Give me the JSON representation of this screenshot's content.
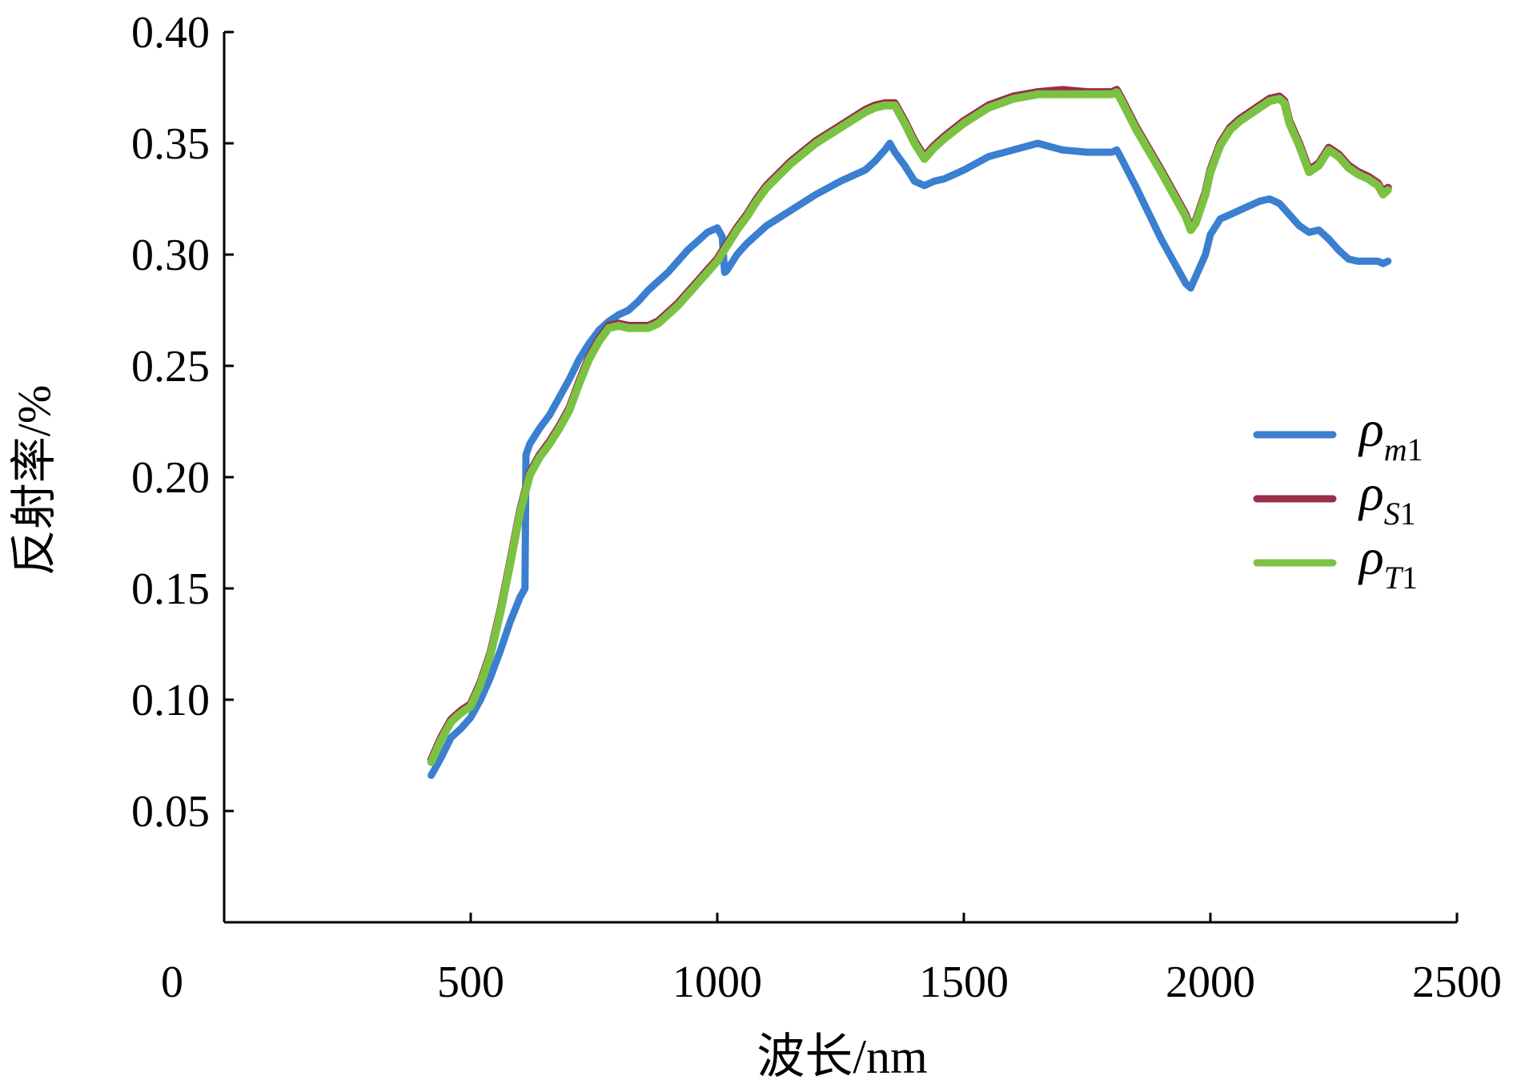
{
  "chart_data": {
    "type": "line",
    "title": "",
    "xlabel": "波长/nm",
    "ylabel": "反射率/%",
    "xlim": [
      0,
      2500
    ],
    "ylim": [
      0,
      0.4
    ],
    "x_ticks": [
      0,
      500,
      1000,
      1500,
      2000,
      2500
    ],
    "x_tick_labels": [
      "0",
      "500",
      "1000",
      "1500",
      "2000",
      "2500"
    ],
    "y_ticks": [
      0.05,
      0.1,
      0.15,
      0.2,
      0.25,
      0.3,
      0.35,
      0.4
    ],
    "y_tick_labels": [
      "0.05",
      "0.10",
      "0.15",
      "0.20",
      "0.25",
      "0.30",
      "0.35",
      "0.40"
    ],
    "grid": false,
    "legend_position": "right",
    "series": [
      {
        "name": "ρm1",
        "legend_base": "ρ",
        "legend_sub": "m1",
        "color": "#3a7fd0",
        "x": [
          420,
          440,
          460,
          480,
          500,
          520,
          540,
          560,
          580,
          600,
          610,
          612,
          620,
          640,
          660,
          680,
          700,
          720,
          740,
          760,
          780,
          800,
          820,
          840,
          860,
          880,
          900,
          920,
          940,
          960,
          980,
          1000,
          1010,
          1015,
          1020,
          1040,
          1060,
          1080,
          1100,
          1150,
          1200,
          1250,
          1300,
          1320,
          1340,
          1350,
          1360,
          1380,
          1400,
          1420,
          1440,
          1460,
          1500,
          1550,
          1600,
          1650,
          1700,
          1750,
          1800,
          1810,
          1820,
          1850,
          1900,
          1950,
          1960,
          1970,
          1990,
          2000,
          2020,
          2040,
          2060,
          2080,
          2100,
          2120,
          2140,
          2160,
          2180,
          2200,
          2220,
          2240,
          2260,
          2280,
          2300,
          2320,
          2340,
          2350,
          2360
        ],
        "values": [
          0.066,
          0.074,
          0.083,
          0.087,
          0.092,
          0.1,
          0.11,
          0.122,
          0.135,
          0.146,
          0.15,
          0.21,
          0.215,
          0.222,
          0.228,
          0.236,
          0.244,
          0.253,
          0.26,
          0.266,
          0.27,
          0.273,
          0.275,
          0.279,
          0.284,
          0.288,
          0.292,
          0.297,
          0.302,
          0.306,
          0.31,
          0.312,
          0.308,
          0.292,
          0.293,
          0.3,
          0.305,
          0.309,
          0.313,
          0.32,
          0.327,
          0.333,
          0.338,
          0.342,
          0.347,
          0.35,
          0.346,
          0.34,
          0.333,
          0.331,
          0.333,
          0.334,
          0.338,
          0.344,
          0.347,
          0.35,
          0.347,
          0.346,
          0.346,
          0.347,
          0.343,
          0.33,
          0.307,
          0.287,
          0.285,
          0.29,
          0.3,
          0.309,
          0.316,
          0.318,
          0.32,
          0.322,
          0.324,
          0.325,
          0.323,
          0.318,
          0.313,
          0.31,
          0.311,
          0.307,
          0.302,
          0.298,
          0.297,
          0.297,
          0.297,
          0.296,
          0.297
        ]
      },
      {
        "name": "ρS1",
        "legend_base": "ρ",
        "legend_sub": "S1",
        "color": "#9b2c4a",
        "x": [
          420,
          440,
          460,
          480,
          500,
          520,
          540,
          560,
          580,
          600,
          620,
          640,
          660,
          680,
          700,
          720,
          740,
          760,
          780,
          800,
          820,
          840,
          860,
          880,
          900,
          920,
          940,
          960,
          980,
          1000,
          1020,
          1040,
          1060,
          1080,
          1100,
          1150,
          1200,
          1250,
          1300,
          1320,
          1340,
          1360,
          1380,
          1400,
          1420,
          1440,
          1460,
          1500,
          1550,
          1600,
          1650,
          1700,
          1750,
          1800,
          1810,
          1820,
          1850,
          1900,
          1950,
          1960,
          1970,
          1990,
          2000,
          2020,
          2040,
          2060,
          2080,
          2100,
          2120,
          2140,
          2150,
          2160,
          2180,
          2200,
          2220,
          2240,
          2260,
          2280,
          2300,
          2320,
          2340,
          2350,
          2360
        ],
        "values": [
          0.073,
          0.083,
          0.091,
          0.095,
          0.098,
          0.108,
          0.121,
          0.14,
          0.162,
          0.185,
          0.202,
          0.21,
          0.216,
          0.223,
          0.231,
          0.243,
          0.254,
          0.262,
          0.268,
          0.269,
          0.268,
          0.268,
          0.268,
          0.27,
          0.274,
          0.278,
          0.283,
          0.288,
          0.293,
          0.298,
          0.305,
          0.312,
          0.318,
          0.325,
          0.331,
          0.342,
          0.351,
          0.358,
          0.365,
          0.367,
          0.368,
          0.368,
          0.36,
          0.351,
          0.344,
          0.349,
          0.353,
          0.36,
          0.367,
          0.371,
          0.373,
          0.374,
          0.373,
          0.373,
          0.374,
          0.37,
          0.357,
          0.338,
          0.318,
          0.312,
          0.315,
          0.328,
          0.338,
          0.35,
          0.357,
          0.361,
          0.364,
          0.367,
          0.37,
          0.371,
          0.369,
          0.36,
          0.35,
          0.338,
          0.341,
          0.348,
          0.345,
          0.34,
          0.337,
          0.335,
          0.332,
          0.328,
          0.33
        ]
      },
      {
        "name": "ρT1",
        "legend_base": "ρ",
        "legend_sub": "T1",
        "color": "#7cc242",
        "x": [
          420,
          440,
          460,
          480,
          500,
          520,
          540,
          560,
          580,
          600,
          620,
          640,
          660,
          680,
          700,
          720,
          740,
          760,
          780,
          800,
          820,
          840,
          860,
          880,
          900,
          920,
          940,
          960,
          980,
          1000,
          1020,
          1040,
          1060,
          1080,
          1100,
          1150,
          1200,
          1250,
          1300,
          1320,
          1340,
          1360,
          1380,
          1400,
          1420,
          1440,
          1460,
          1500,
          1550,
          1600,
          1650,
          1700,
          1750,
          1800,
          1810,
          1820,
          1850,
          1900,
          1950,
          1960,
          1970,
          1990,
          2000,
          2020,
          2040,
          2060,
          2080,
          2100,
          2120,
          2140,
          2150,
          2160,
          2180,
          2200,
          2220,
          2240,
          2260,
          2280,
          2300,
          2320,
          2340,
          2350,
          2360
        ],
        "values": [
          0.072,
          0.082,
          0.09,
          0.094,
          0.097,
          0.107,
          0.12,
          0.139,
          0.161,
          0.184,
          0.201,
          0.209,
          0.215,
          0.222,
          0.23,
          0.242,
          0.253,
          0.261,
          0.267,
          0.268,
          0.267,
          0.267,
          0.267,
          0.269,
          0.273,
          0.277,
          0.282,
          0.287,
          0.292,
          0.297,
          0.304,
          0.311,
          0.317,
          0.324,
          0.33,
          0.341,
          0.35,
          0.357,
          0.364,
          0.366,
          0.367,
          0.367,
          0.359,
          0.35,
          0.343,
          0.348,
          0.352,
          0.359,
          0.366,
          0.37,
          0.372,
          0.372,
          0.372,
          0.372,
          0.373,
          0.369,
          0.356,
          0.337,
          0.317,
          0.311,
          0.314,
          0.327,
          0.337,
          0.349,
          0.356,
          0.36,
          0.363,
          0.366,
          0.369,
          0.37,
          0.368,
          0.359,
          0.349,
          0.337,
          0.34,
          0.347,
          0.344,
          0.339,
          0.336,
          0.334,
          0.331,
          0.327,
          0.329
        ]
      }
    ]
  }
}
